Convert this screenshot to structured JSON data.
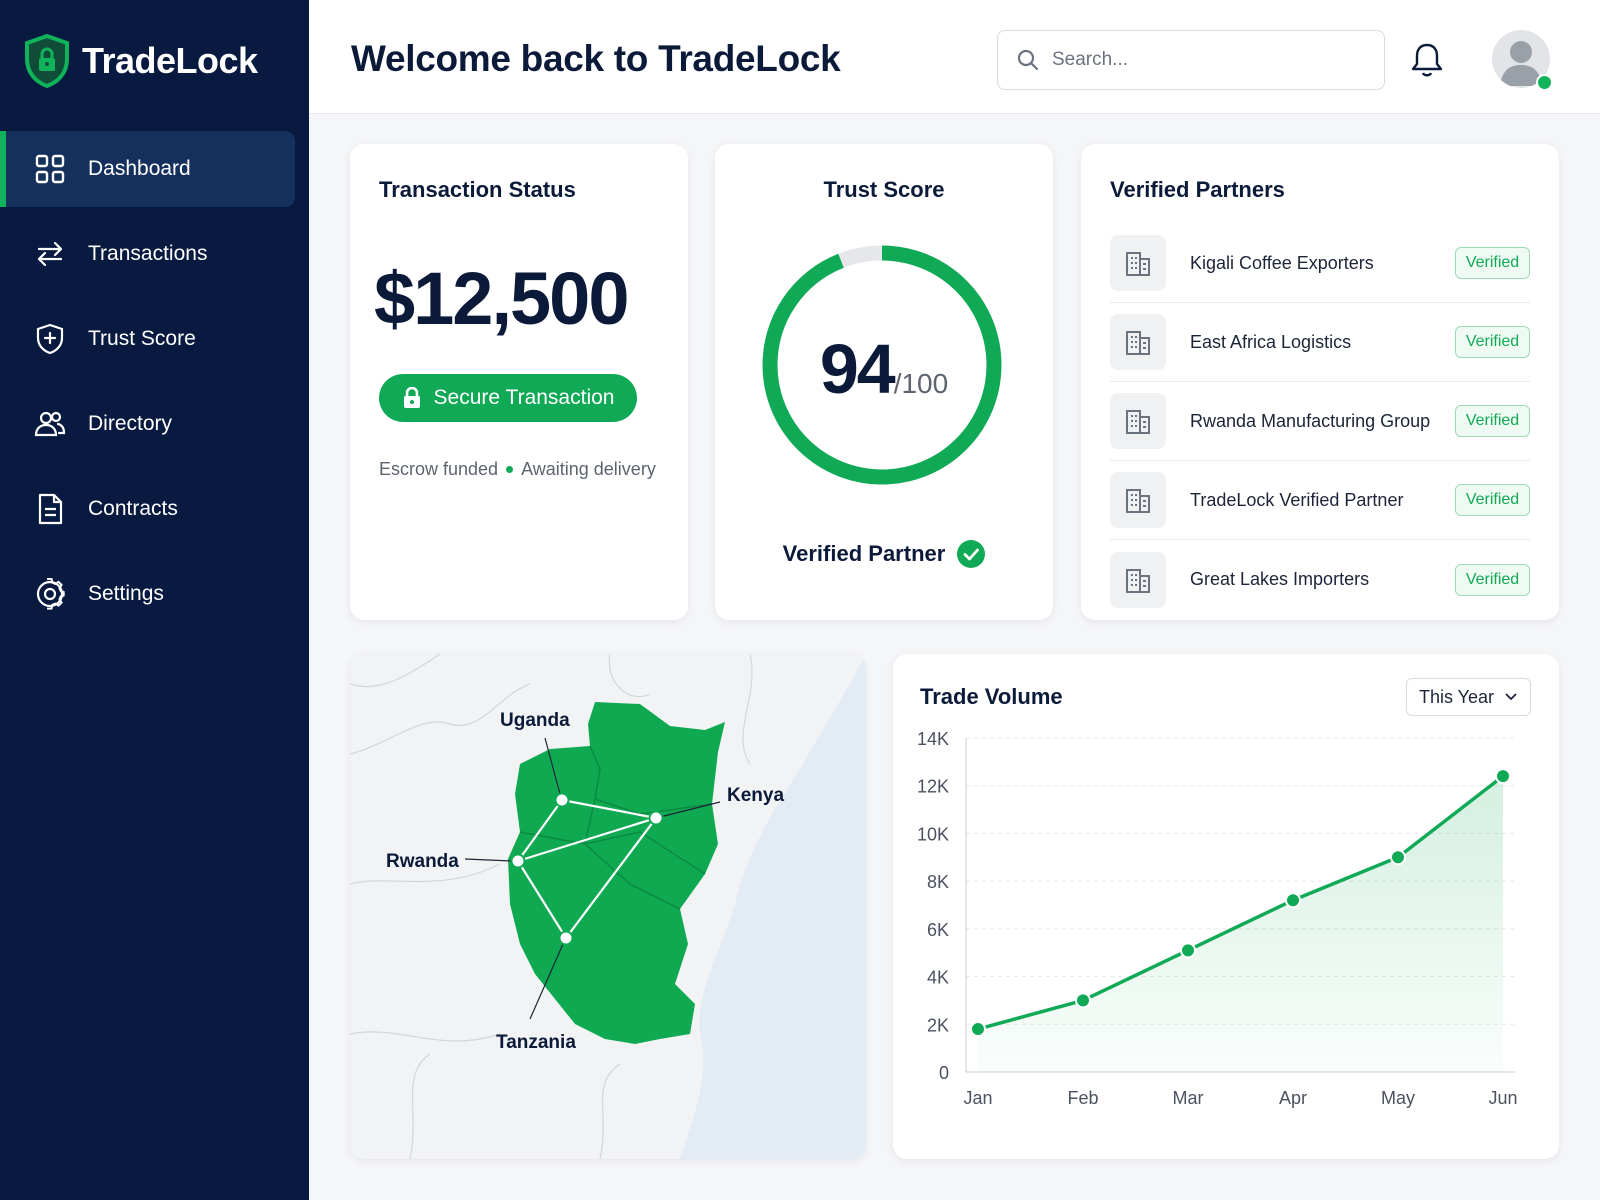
{
  "app": {
    "name": "TradeLock"
  },
  "sidebar": {
    "items": [
      {
        "label": "Dashboard",
        "icon": "grid-icon",
        "active": true
      },
      {
        "label": "Transactions",
        "icon": "arrows-exchange-icon"
      },
      {
        "label": "Trust Score",
        "icon": "shield-plus-icon"
      },
      {
        "label": "Directory",
        "icon": "users-icon"
      },
      {
        "label": "Contracts",
        "icon": "document-icon"
      },
      {
        "label": "Settings",
        "icon": "gear-icon"
      }
    ]
  },
  "header": {
    "title": "Welcome back to TradeLock",
    "search_placeholder": "Search..."
  },
  "transaction": {
    "title": "Transaction Status",
    "amount": "$12,500",
    "button_label": "Secure Transaction",
    "status_left": "Escrow funded",
    "status_right": "Awaiting delivery"
  },
  "trust": {
    "title": "Trust Score",
    "score": "94",
    "max": "/100",
    "fraction": 0.94,
    "footer": "Verified Partner"
  },
  "partners": {
    "title": "Verified Partners",
    "items": [
      {
        "name": "Kigali Coffee Exporters",
        "badge": "Verified"
      },
      {
        "name": "East Africa Logistics",
        "badge": "Verified"
      },
      {
        "name": "Rwanda Manufacturing Group",
        "badge": "Verified"
      },
      {
        "name": "TradeLock Verified Partner",
        "badge": "Verified"
      },
      {
        "name": "Great Lakes Importers",
        "badge": "Verified"
      }
    ]
  },
  "map": {
    "labels": {
      "uganda": "Uganda",
      "kenya": "Kenya",
      "rwanda": "Rwanda",
      "tanzania": "Tanzania"
    }
  },
  "volume": {
    "title": "Trade Volume",
    "range_label": "This Year"
  },
  "colors": {
    "brand_green": "#10a955",
    "navy": "#081a40"
  },
  "chart_data": {
    "type": "area",
    "title": "Trade Volume",
    "categories": [
      "Jan",
      "Feb",
      "Mar",
      "Apr",
      "May",
      "Jun"
    ],
    "values": [
      1800,
      3000,
      5100,
      7200,
      9000,
      12400
    ],
    "ylim": [
      0,
      14000
    ],
    "yticks": [
      0,
      2000,
      4000,
      6000,
      8000,
      10000,
      12000,
      14000
    ],
    "ytick_labels": [
      "0",
      "2K",
      "4K",
      "6K",
      "8K",
      "10K",
      "12K",
      "14K"
    ],
    "grid": true
  }
}
